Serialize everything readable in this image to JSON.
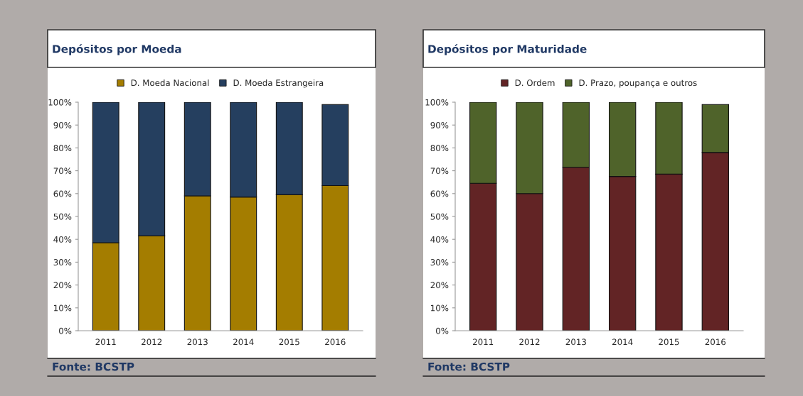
{
  "chart_data": [
    {
      "type": "bar",
      "title": "Depósitos por Moeda",
      "stacked": true,
      "categories": [
        "2011",
        "2012",
        "2013",
        "2014",
        "2015",
        "2016"
      ],
      "series": [
        {
          "name": "D. Moeda Nacional",
          "color": "#a47d00",
          "values": [
            38.5,
            41.5,
            59,
            58.5,
            59.5,
            63.5
          ]
        },
        {
          "name": "D. Moeda Estrangeira",
          "color": "#253f5f",
          "values": [
            61.5,
            58.5,
            41,
            41.5,
            40.5,
            35.5
          ]
        }
      ],
      "ylim": [
        0,
        100
      ],
      "yticks": [
        {
          "value": 0,
          "label": "0%"
        },
        {
          "value": 10,
          "label": "10%"
        },
        {
          "value": 20,
          "label": "20%"
        },
        {
          "value": 30,
          "label": "30%"
        },
        {
          "value": 40,
          "label": "40%"
        },
        {
          "value": 50,
          "label": "50%"
        },
        {
          "value": 60,
          "label": "60%"
        },
        {
          "value": 70,
          "label": "70%"
        },
        {
          "value": 80,
          "label": "80%"
        },
        {
          "value": 90,
          "label": "90%"
        },
        {
          "value": 100,
          "label": "100%"
        }
      ],
      "grid": false,
      "legend": "top",
      "annotations": [
        "Fonte: BCSTP"
      ]
    },
    {
      "type": "bar",
      "title": "Depósitos por Maturidade",
      "stacked": true,
      "categories": [
        "2011",
        "2012",
        "2013",
        "2014",
        "2015",
        "2016"
      ],
      "series": [
        {
          "name": "D. Ordem",
          "color": "#622425",
          "values": [
            64.5,
            60,
            71.5,
            67.5,
            68.5,
            78
          ]
        },
        {
          "name": "D. Prazo, poupança e outros",
          "color": "#4f632a",
          "values": [
            35.5,
            40,
            28.5,
            32.5,
            31.5,
            21
          ]
        }
      ],
      "ylim": [
        0,
        100
      ],
      "yticks": [
        {
          "value": 0,
          "label": "0%"
        },
        {
          "value": 10,
          "label": "10%"
        },
        {
          "value": 20,
          "label": "20%"
        },
        {
          "value": 30,
          "label": "30%"
        },
        {
          "value": 40,
          "label": "40%"
        },
        {
          "value": 50,
          "label": "50%"
        },
        {
          "value": 60,
          "label": "60%"
        },
        {
          "value": 70,
          "label": "70%"
        },
        {
          "value": 80,
          "label": "80%"
        },
        {
          "value": 90,
          "label": "90%"
        },
        {
          "value": 100,
          "label": "100%"
        }
      ],
      "grid": false,
      "legend": "top",
      "annotations": [
        "Fonte: BCSTP"
      ]
    }
  ]
}
